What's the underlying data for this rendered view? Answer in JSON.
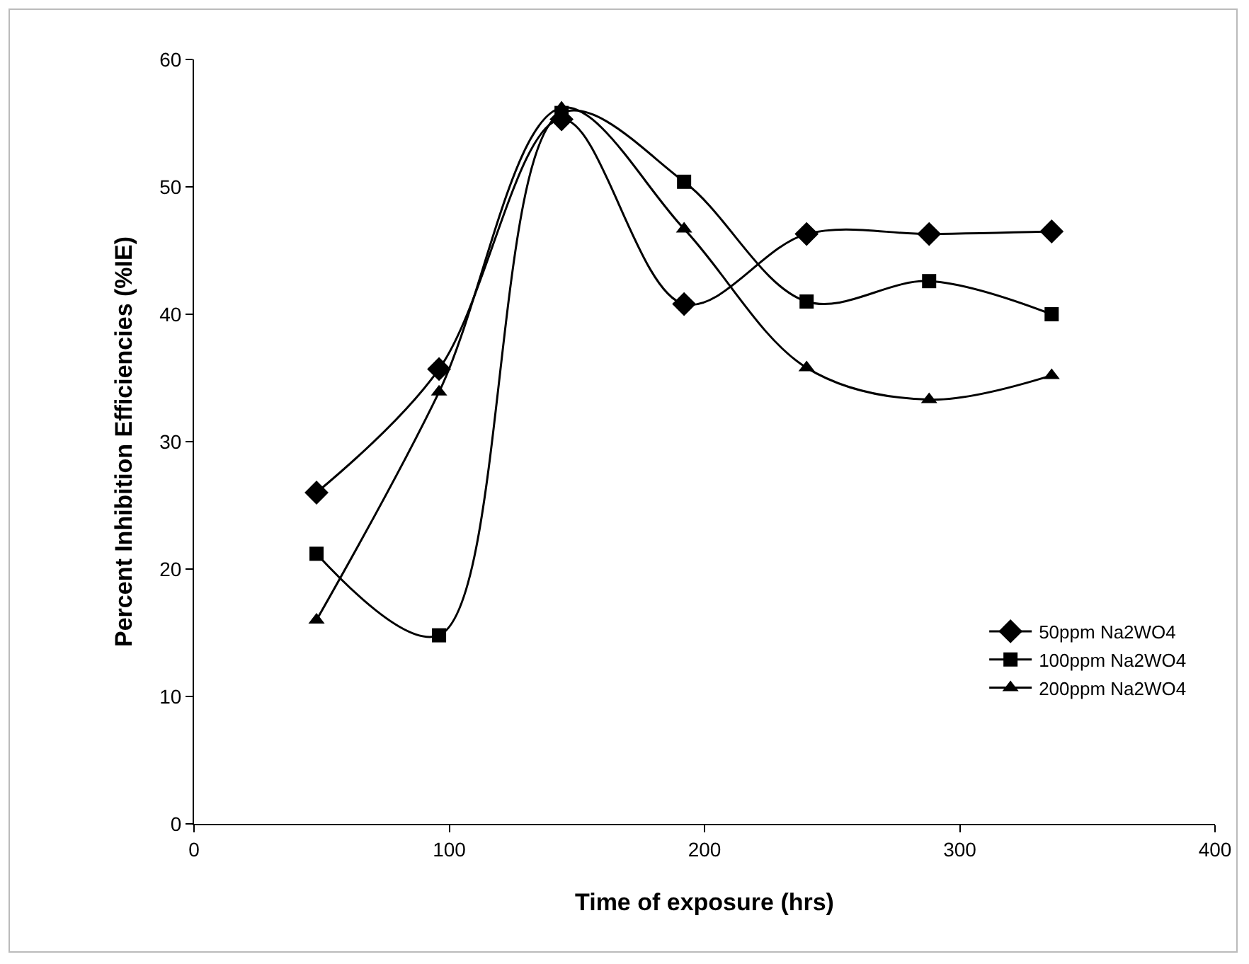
{
  "chart_data": {
    "type": "line",
    "xlabel": "Time of exposure (hrs)",
    "ylabel": "Percent Inhibition Efficiencies (%IE)",
    "x": [
      48,
      96,
      144,
      192,
      240,
      288,
      336
    ],
    "series": [
      {
        "name": "50ppm Na2WO4",
        "color": "#000000",
        "marker": "diamond",
        "values": [
          26.0,
          35.7,
          55.3,
          40.8,
          46.3,
          46.3,
          46.5
        ]
      },
      {
        "name": "100ppm Na2WO4",
        "color": "#000000",
        "marker": "square",
        "values": [
          21.2,
          14.8,
          55.8,
          50.4,
          41.0,
          42.6,
          40.0
        ]
      },
      {
        "name": "200ppm Na2WO4",
        "color": "#000000",
        "marker": "triangle",
        "values": [
          16.0,
          33.9,
          56.2,
          46.7,
          35.8,
          33.3,
          35.2
        ]
      }
    ],
    "xlim": [
      0,
      400
    ],
    "xticks": [
      0,
      100,
      200,
      300,
      400
    ],
    "ylim": [
      0,
      60
    ],
    "yticks": [
      0,
      10,
      20,
      30,
      40,
      50,
      60
    ],
    "grid": false,
    "legend": "bottom right",
    "line_style": "solid"
  }
}
